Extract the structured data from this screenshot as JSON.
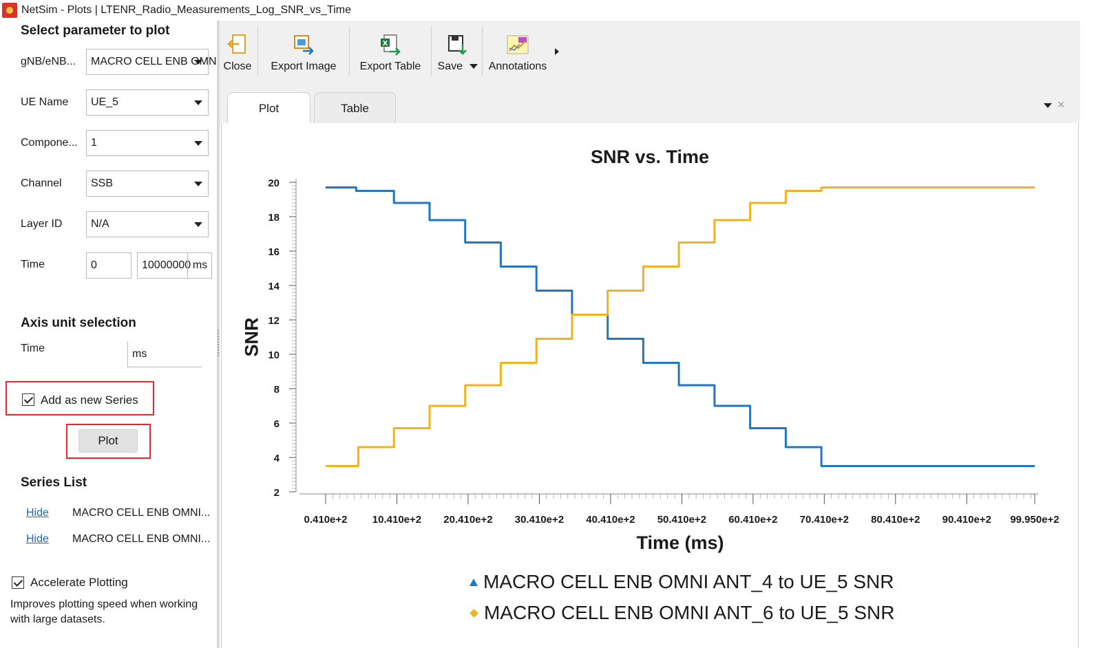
{
  "window": {
    "title": "NetSim - Plots | LTENR_Radio_Measurements_Log_SNR_vs_Time"
  },
  "left_panel": {
    "select_title": "Select parameter to plot",
    "params": [
      {
        "label": "gNB/eNB...",
        "value": "MACRO CELL ENB OMNI"
      },
      {
        "label": "UE Name",
        "value": "UE_5"
      },
      {
        "label": "Compone...",
        "value": "1"
      },
      {
        "label": "Channel",
        "value": "SSB"
      },
      {
        "label": "Layer ID",
        "value": "N/A"
      }
    ],
    "time": {
      "label": "Time",
      "start": "0",
      "end": "10000000",
      "unit": "ms"
    },
    "axis_title": "Axis unit selection",
    "axis_time": {
      "label": "Time",
      "unit": "ms"
    },
    "add_series": {
      "label": "Add as new Series",
      "checked": true
    },
    "plot_button": "Plot",
    "series_title": "Series List",
    "series": [
      {
        "action": "Hide",
        "name": "MACRO CELL ENB OMNI..."
      },
      {
        "action": "Hide",
        "name": "MACRO CELL ENB OMNI..."
      }
    ],
    "accelerate": {
      "label": "Accelerate Plotting",
      "checked": true,
      "note": "Improves plotting speed when working with large datasets."
    }
  },
  "toolbar": {
    "close": "Close",
    "export_image": "Export Image",
    "export_table": "Export Table",
    "save": "Save",
    "annotations": "Annotations"
  },
  "tabs": [
    {
      "label": "Plot",
      "active": true
    },
    {
      "label": "Table",
      "active": false
    }
  ],
  "tab_close_glyph": "×",
  "colors": {
    "series1": "#1f76c2",
    "series2": "#f3b21a",
    "highlight": "#e0282e",
    "link": "#1a66c8"
  },
  "chart_data": {
    "type": "line",
    "title": "SNR vs. Time",
    "xlabel": "Time (ms)",
    "ylabel": "SNR",
    "xlim": [
      41,
      9995
    ],
    "ylim": [
      2,
      20
    ],
    "yticks": [
      2,
      4,
      6,
      8,
      10,
      12,
      14,
      16,
      18,
      20
    ],
    "xticks": [
      41,
      1041,
      2041,
      3041,
      4041,
      5041,
      6041,
      7041,
      8041,
      9041,
      9995
    ],
    "xtick_labels": [
      "0.410e+2",
      "10.410e+2",
      "20.410e+2",
      "30.410e+2",
      "40.410e+2",
      "50.410e+2",
      "60.410e+2",
      "70.410e+2",
      "80.410e+2",
      "90.410e+2",
      "99.950e+2"
    ],
    "legend_position": "bottom",
    "series": [
      {
        "name": "MACRO CELL ENB OMNI ANT_4 to UE_5 SNR",
        "marker": "triangle",
        "color": "#1f76c2",
        "x": [
          41,
          470,
          470,
          1000,
          1000,
          1500,
          1500,
          2000,
          2000,
          2500,
          2500,
          3000,
          3000,
          3500,
          3500,
          4000,
          4000,
          4500,
          4500,
          5000,
          5000,
          5500,
          5500,
          6000,
          6000,
          6500,
          6500,
          7000,
          7000,
          9995
        ],
        "y": [
          19.7,
          19.7,
          19.5,
          19.5,
          18.8,
          18.8,
          17.8,
          17.8,
          16.5,
          16.5,
          15.1,
          15.1,
          13.7,
          13.7,
          12.3,
          12.3,
          10.9,
          10.9,
          9.5,
          9.5,
          8.2,
          8.2,
          7.0,
          7.0,
          5.7,
          5.7,
          4.6,
          4.6,
          3.5,
          3.5
        ]
      },
      {
        "name": "MACRO CELL ENB OMNI ANT_6 to UE_5 SNR",
        "marker": "diamond",
        "color": "#f3b21a",
        "x": [
          41,
          500,
          500,
          1000,
          1000,
          1500,
          1500,
          2000,
          2000,
          2500,
          2500,
          3000,
          3000,
          3500,
          3500,
          4000,
          4000,
          4500,
          4500,
          5000,
          5000,
          5500,
          5500,
          6000,
          6000,
          6500,
          6500,
          7000,
          7000,
          9995
        ],
        "y": [
          3.5,
          3.5,
          4.6,
          4.6,
          5.7,
          5.7,
          7.0,
          7.0,
          8.2,
          8.2,
          9.5,
          9.5,
          10.9,
          10.9,
          12.3,
          12.3,
          13.7,
          13.7,
          15.1,
          15.1,
          16.5,
          16.5,
          17.8,
          17.8,
          18.8,
          18.8,
          19.5,
          19.5,
          19.7,
          19.7
        ]
      }
    ]
  }
}
